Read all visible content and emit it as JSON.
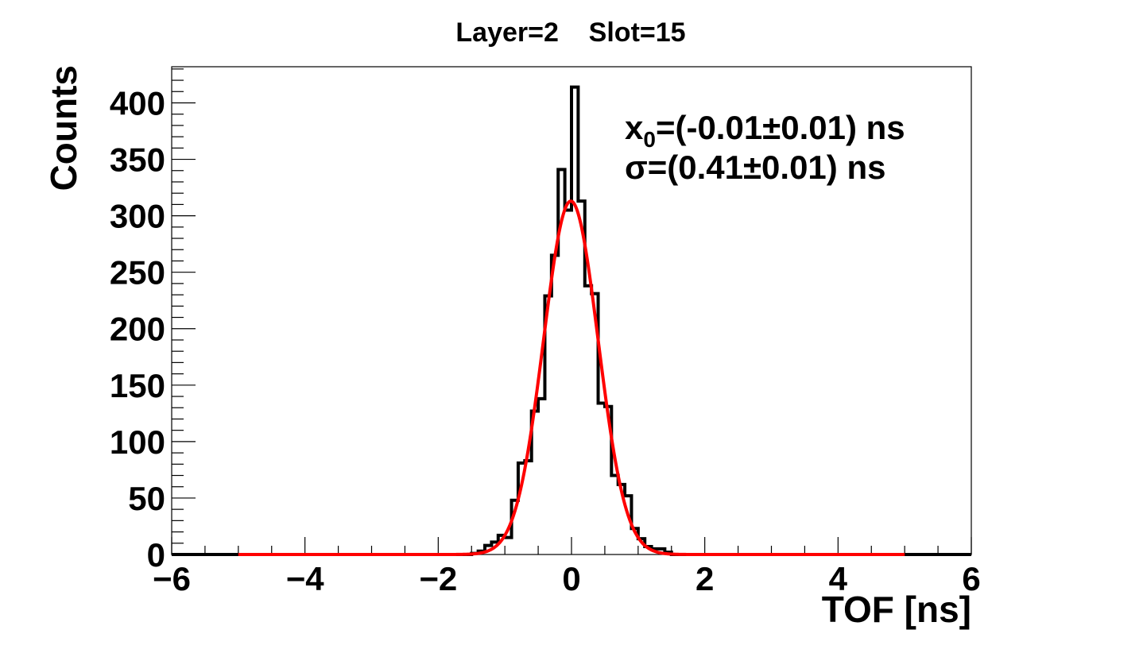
{
  "chart_data": {
    "type": "histogram",
    "title": "Layer=2    Slot=15",
    "xlabel": "TOF [ns]",
    "ylabel": "Counts",
    "xlim": [
      -6,
      6
    ],
    "ylim": [
      0,
      432
    ],
    "x_major_ticks": [
      -6,
      -4,
      -2,
      0,
      2,
      4,
      6
    ],
    "x_tick_labels": [
      "−6",
      "−4",
      "−2",
      "0",
      "2",
      "4",
      "6"
    ],
    "y_major_ticks": [
      0,
      50,
      100,
      150,
      200,
      250,
      300,
      350,
      400
    ],
    "y_tick_labels": [
      "0",
      "50",
      "100",
      "150",
      "200",
      "250",
      "300",
      "350",
      "400"
    ],
    "grid": false,
    "histogram": {
      "name": "",
      "color": "#000000",
      "bins": [
        {
          "x0": -1.5,
          "x1": -1.4,
          "count": 1
        },
        {
          "x0": -1.4,
          "x1": -1.3,
          "count": 3
        },
        {
          "x0": -1.3,
          "x1": -1.2,
          "count": 8
        },
        {
          "x0": -1.2,
          "x1": -1.1,
          "count": 11
        },
        {
          "x0": -1.1,
          "x1": -1.0,
          "count": 17
        },
        {
          "x0": -1.0,
          "x1": -0.9,
          "count": 15
        },
        {
          "x0": -0.9,
          "x1": -0.8,
          "count": 48
        },
        {
          "x0": -0.8,
          "x1": -0.7,
          "count": 81
        },
        {
          "x0": -0.7,
          "x1": -0.6,
          "count": 83
        },
        {
          "x0": -0.6,
          "x1": -0.5,
          "count": 127
        },
        {
          "x0": -0.5,
          "x1": -0.4,
          "count": 138
        },
        {
          "x0": -0.4,
          "x1": -0.3,
          "count": 229
        },
        {
          "x0": -0.3,
          "x1": -0.2,
          "count": 265
        },
        {
          "x0": -0.2,
          "x1": -0.1,
          "count": 341
        },
        {
          "x0": -0.1,
          "x1": 0.0,
          "count": 305
        },
        {
          "x0": 0.0,
          "x1": 0.1,
          "count": 414
        },
        {
          "x0": 0.1,
          "x1": 0.2,
          "count": 313
        },
        {
          "x0": 0.2,
          "x1": 0.3,
          "count": 238
        },
        {
          "x0": 0.3,
          "x1": 0.4,
          "count": 231
        },
        {
          "x0": 0.4,
          "x1": 0.5,
          "count": 134
        },
        {
          "x0": 0.5,
          "x1": 0.6,
          "count": 131
        },
        {
          "x0": 0.6,
          "x1": 0.7,
          "count": 70
        },
        {
          "x0": 0.7,
          "x1": 0.8,
          "count": 62
        },
        {
          "x0": 0.8,
          "x1": 0.9,
          "count": 52
        },
        {
          "x0": 0.9,
          "x1": 1.0,
          "count": 23
        },
        {
          "x0": 1.0,
          "x1": 1.1,
          "count": 14
        },
        {
          "x0": 1.1,
          "x1": 1.2,
          "count": 7
        },
        {
          "x0": 1.2,
          "x1": 1.3,
          "count": 5
        },
        {
          "x0": 1.3,
          "x1": 1.4,
          "count": 5
        },
        {
          "x0": 1.4,
          "x1": 1.5,
          "count": 2
        }
      ]
    },
    "fit": {
      "name": "",
      "type": "gaussian",
      "color": "#ff0000",
      "amplitude": 313,
      "mean": -0.01,
      "sigma": 0.41,
      "x_range": [
        -5,
        5
      ]
    },
    "annotations": {
      "mean_prefix": "x",
      "mean_subscript": "0",
      "mean_text": "=(-0.01±0.01) ns",
      "sigma_text": "σ=(0.41±0.01) ns"
    }
  }
}
